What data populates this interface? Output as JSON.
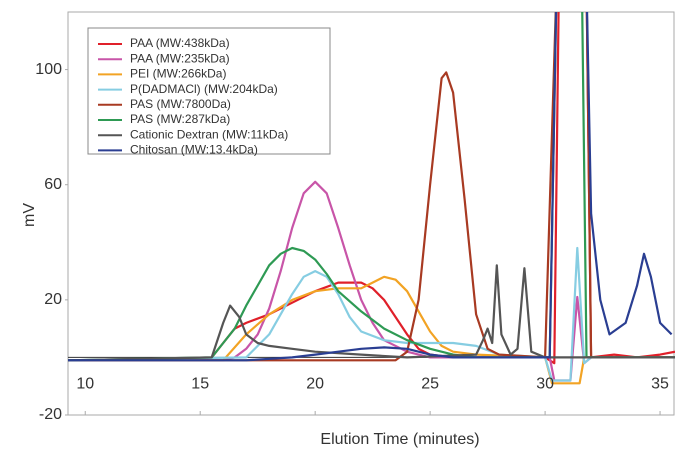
{
  "chart_data": {
    "type": "line",
    "x_label": "Elution Time (minutes)",
    "y_label": "mV",
    "xlim": [
      9.25,
      35.65
    ],
    "ylim": [
      -20,
      120
    ],
    "xticks": [
      10,
      15,
      20,
      25,
      30,
      35
    ],
    "yticks": [
      -20,
      20,
      60,
      100
    ],
    "legend": "upper left",
    "series": [
      {
        "name": "PAA (MW:438kDa)",
        "color": "#e0202a",
        "x": [
          9.25,
          15,
          15.5,
          16,
          16.5,
          17,
          18,
          19,
          20,
          21,
          22,
          22.5,
          23,
          23.5,
          24,
          24.5,
          25,
          26,
          30,
          30.4,
          30.6,
          31.8,
          32,
          33,
          34,
          35,
          35.65
        ],
        "values": [
          -1,
          -1,
          0,
          5,
          10,
          12,
          15,
          19,
          23,
          26,
          26,
          24,
          20,
          14,
          8,
          3,
          1,
          0,
          0,
          -2,
          130,
          130,
          0,
          1,
          0,
          1,
          2
        ]
      },
      {
        "name": "PAA (MW:235kDa)",
        "color": "#c855a8",
        "x": [
          9.25,
          16,
          16.5,
          17,
          17.5,
          18,
          18.5,
          19,
          19.5,
          20,
          20.5,
          21,
          21.5,
          22,
          22.5,
          23,
          24,
          25,
          30.2,
          30.4,
          31.1,
          31.4,
          31.7,
          32,
          35.65
        ],
        "values": [
          -1,
          -1,
          0,
          3,
          8,
          17,
          30,
          45,
          57,
          61,
          57,
          45,
          32,
          20,
          12,
          6,
          2,
          0,
          0,
          -8,
          -8,
          21,
          -2,
          0,
          0
        ]
      },
      {
        "name": "PEI (MW:266kDa)",
        "color": "#f2a324",
        "x": [
          9.25,
          16,
          17,
          18,
          19,
          20,
          21,
          22,
          22.5,
          23,
          23.5,
          24,
          24.5,
          25,
          25.5,
          26,
          27,
          30,
          30.3,
          31.5,
          31.7,
          32,
          35.65
        ],
        "values": [
          -1,
          -1,
          8,
          15,
          20,
          23,
          24,
          24,
          26,
          28,
          27,
          23,
          16,
          9,
          4,
          2,
          1,
          0,
          -9,
          -9,
          0,
          0,
          0
        ]
      },
      {
        "name": "P(DADMACl) (MW:204kDa)",
        "color": "#86cde2",
        "x": [
          9.25,
          17,
          18,
          19,
          19.5,
          20,
          20.5,
          21,
          21.5,
          22,
          23,
          24,
          26,
          27,
          28,
          30,
          30.3,
          31.1,
          31.4,
          31.7,
          32,
          35.65
        ],
        "values": [
          -1,
          0,
          8,
          22,
          28,
          30,
          28,
          22,
          14,
          9,
          6,
          5,
          5,
          4,
          1,
          0,
          -8,
          -8,
          38,
          -2,
          0,
          0
        ]
      },
      {
        "name": "PAS (MW:7800Da)",
        "color": "#a83a22",
        "x": [
          9.25,
          23.5,
          24,
          24.5,
          25,
          25.5,
          25.7,
          26,
          26.5,
          27,
          27.5,
          28,
          30,
          30.5,
          31.8,
          32,
          35.65
        ],
        "values": [
          -1,
          -1,
          2,
          20,
          60,
          97,
          99,
          92,
          55,
          15,
          3,
          1,
          0,
          130,
          130,
          0,
          0
        ]
      },
      {
        "name": "PAS (MW:287kDa)",
        "color": "#2e9a54",
        "x": [
          9.25,
          15.5,
          16,
          16.5,
          17,
          17.5,
          18,
          18.5,
          19,
          19.5,
          20,
          20.5,
          21,
          22,
          23,
          24,
          25,
          26,
          27,
          30.2,
          30.5,
          31.6,
          31.8,
          35.65
        ],
        "values": [
          -1,
          0,
          5,
          10,
          18,
          25,
          32,
          36,
          38,
          37,
          34,
          29,
          23,
          16,
          10,
          6,
          3,
          1,
          0,
          0,
          130,
          130,
          0,
          0
        ]
      },
      {
        "name": "Cationic Dextran (MW:11kDa)",
        "color": "#555555",
        "x": [
          9.25,
          15.5,
          16,
          16.3,
          16.7,
          17,
          17.5,
          18,
          19,
          20,
          22,
          24,
          27,
          27.3,
          27.5,
          27.7,
          27.9,
          28.1,
          28.5,
          28.8,
          29.1,
          29.4,
          30,
          35.65
        ],
        "values": [
          -1,
          0,
          12,
          18,
          14,
          8,
          5,
          4,
          3,
          2,
          1,
          0,
          1,
          6,
          10,
          5,
          32,
          8,
          1,
          3,
          31,
          2,
          0,
          0
        ]
      },
      {
        "name": "Chitosan (MW:13.4kDa)",
        "color": "#2a3e92",
        "x": [
          9.25,
          17,
          19,
          20,
          21,
          22,
          23,
          24,
          25,
          26,
          30.2,
          30.5,
          31.8,
          32,
          32.4,
          32.8,
          33.5,
          34,
          34.3,
          34.6,
          35,
          35.5
        ],
        "values": [
          -1,
          -1,
          0,
          1,
          2,
          3,
          3.5,
          3,
          1,
          0,
          0,
          130,
          130,
          50,
          20,
          8,
          12,
          25,
          36,
          28,
          12,
          8
        ]
      }
    ]
  }
}
